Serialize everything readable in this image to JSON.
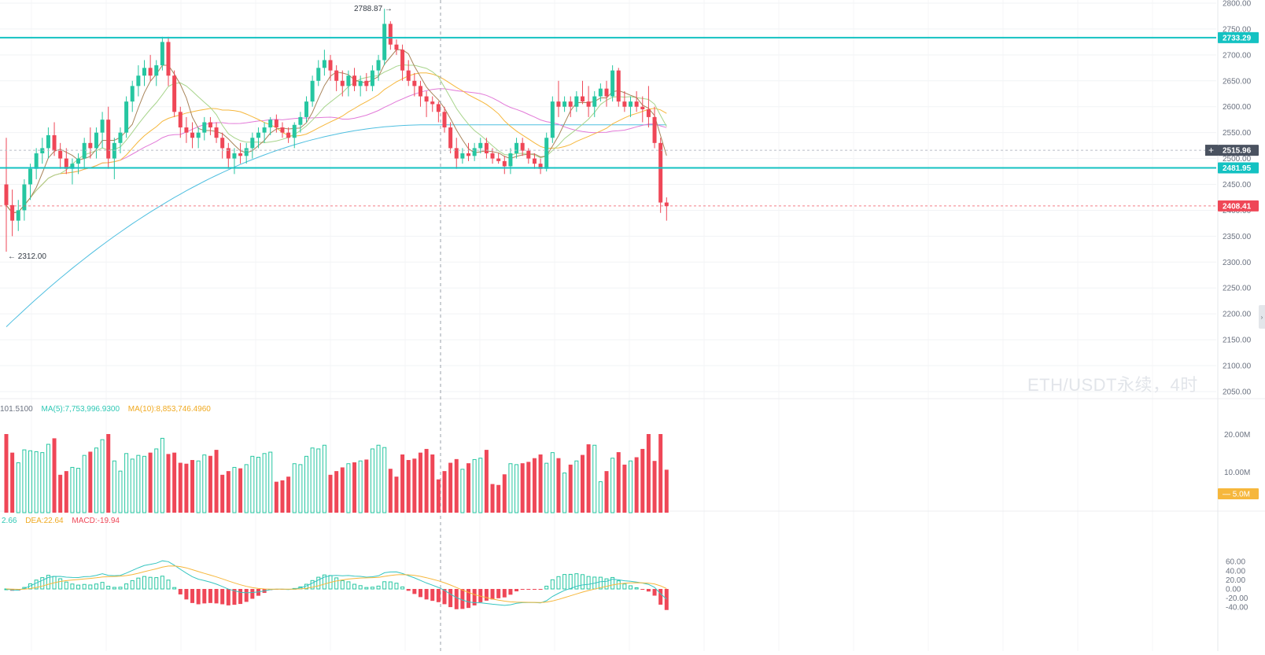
{
  "colors": {
    "up": "#26c6a1",
    "down": "#ef4757",
    "ma5": "#a8845a",
    "ma10": "#a7d48b",
    "ma30": "#f6b73c",
    "ma60": "#e27ad8",
    "ma120": "#4fbfe0",
    "level": "#14c2c2",
    "volMa5": "#2fc8b5",
    "volMa10": "#f6b73c",
    "dif": "#36c5c0",
    "dea": "#f6b73c"
  },
  "price_axis": {
    "ticks": [
      "2800.00",
      "2750.00",
      "2700.00",
      "2650.00",
      "2600.00",
      "2550.00",
      "2500.00",
      "2450.00",
      "2400.00",
      "2350.00",
      "2300.00",
      "2250.00",
      "2200.00",
      "2150.00",
      "2100.00",
      "2050.00"
    ]
  },
  "price_labels": {
    "resistance": "2733.29",
    "crosshair": "2515.96",
    "support": "2481.95",
    "last": "2408.41"
  },
  "annotations": {
    "high": "2788.87",
    "low": "2312.00"
  },
  "volume_legend": {
    "vol": "101.5100",
    "ma5": "MA(5):7,753,996.9300",
    "ma10": "MA(10):8,853,746.4960"
  },
  "volume_axis": {
    "ticks": [
      "20.00M",
      "10.00M"
    ],
    "marker": "5.0M"
  },
  "macd_legend": {
    "dif": "2.66",
    "dea": "DEA:22.64",
    "macd": "MACD:-19.94"
  },
  "macd_axis": {
    "ticks": [
      "60.00",
      "40.00",
      "20.00",
      "0.00",
      "-20.00",
      "-40.00"
    ]
  },
  "watermark": "ETH/USDT永续，4时",
  "chart_data": {
    "type": "candlestick",
    "title": "ETH/USDT永续，4时",
    "ylim": [
      2040,
      2800
    ],
    "levels": [
      2733.29,
      2481.95
    ],
    "crosshair_price": 2515.96,
    "last_price": 2408.41,
    "candles": [
      [
        2450,
        2540,
        2320,
        2410
      ],
      [
        2410,
        2440,
        2350,
        2380
      ],
      [
        2380,
        2420,
        2360,
        2400
      ],
      [
        2400,
        2460,
        2380,
        2450
      ],
      [
        2450,
        2490,
        2420,
        2480
      ],
      [
        2480,
        2520,
        2460,
        2510
      ],
      [
        2510,
        2540,
        2490,
        2520
      ],
      [
        2520,
        2560,
        2500,
        2545
      ],
      [
        2545,
        2570,
        2505,
        2515
      ],
      [
        2515,
        2530,
        2480,
        2500
      ],
      [
        2500,
        2520,
        2470,
        2480
      ],
      [
        2480,
        2500,
        2450,
        2490
      ],
      [
        2490,
        2510,
        2470,
        2500
      ],
      [
        2500,
        2540,
        2480,
        2530
      ],
      [
        2530,
        2560,
        2500,
        2520
      ],
      [
        2520,
        2560,
        2500,
        2550
      ],
      [
        2550,
        2590,
        2520,
        2575
      ],
      [
        2575,
        2600,
        2480,
        2500
      ],
      [
        2500,
        2540,
        2460,
        2530
      ],
      [
        2530,
        2560,
        2510,
        2550
      ],
      [
        2550,
        2620,
        2540,
        2610
      ],
      [
        2610,
        2650,
        2590,
        2640
      ],
      [
        2640,
        2680,
        2620,
        2660
      ],
      [
        2660,
        2690,
        2640,
        2675
      ],
      [
        2675,
        2700,
        2650,
        2660
      ],
      [
        2660,
        2690,
        2640,
        2680
      ],
      [
        2680,
        2735,
        2670,
        2725
      ],
      [
        2725,
        2735,
        2640,
        2660
      ],
      [
        2660,
        2670,
        2580,
        2590
      ],
      [
        2590,
        2600,
        2540,
        2560
      ],
      [
        2560,
        2580,
        2530,
        2550
      ],
      [
        2550,
        2570,
        2520,
        2540
      ],
      [
        2540,
        2560,
        2520,
        2550
      ],
      [
        2550,
        2580,
        2535,
        2570
      ],
      [
        2570,
        2580,
        2545,
        2560
      ],
      [
        2560,
        2570,
        2530,
        2540
      ],
      [
        2540,
        2550,
        2500,
        2520
      ],
      [
        2520,
        2530,
        2480,
        2500
      ],
      [
        2500,
        2520,
        2470,
        2510
      ],
      [
        2510,
        2530,
        2490,
        2505
      ],
      [
        2505,
        2530,
        2490,
        2520
      ],
      [
        2520,
        2550,
        2500,
        2540
      ],
      [
        2540,
        2560,
        2520,
        2550
      ],
      [
        2550,
        2570,
        2530,
        2560
      ],
      [
        2560,
        2580,
        2545,
        2575
      ],
      [
        2575,
        2585,
        2550,
        2560
      ],
      [
        2560,
        2570,
        2540,
        2550
      ],
      [
        2550,
        2560,
        2530,
        2540
      ],
      [
        2540,
        2570,
        2520,
        2565
      ],
      [
        2565,
        2590,
        2550,
        2580
      ],
      [
        2580,
        2620,
        2570,
        2610
      ],
      [
        2610,
        2660,
        2600,
        2650
      ],
      [
        2650,
        2690,
        2640,
        2675
      ],
      [
        2675,
        2710,
        2660,
        2690
      ],
      [
        2690,
        2700,
        2650,
        2670
      ],
      [
        2670,
        2680,
        2630,
        2650
      ],
      [
        2650,
        2670,
        2620,
        2640
      ],
      [
        2640,
        2670,
        2620,
        2660
      ],
      [
        2660,
        2675,
        2630,
        2640
      ],
      [
        2640,
        2660,
        2620,
        2650
      ],
      [
        2650,
        2665,
        2630,
        2640
      ],
      [
        2640,
        2680,
        2630,
        2670
      ],
      [
        2670,
        2700,
        2650,
        2690
      ],
      [
        2690,
        2789,
        2680,
        2760
      ],
      [
        2760,
        2765,
        2710,
        2720
      ],
      [
        2720,
        2730,
        2700,
        2710
      ],
      [
        2710,
        2720,
        2650,
        2670
      ],
      [
        2670,
        2690,
        2640,
        2650
      ],
      [
        2650,
        2665,
        2620,
        2640
      ],
      [
        2640,
        2650,
        2600,
        2620
      ],
      [
        2620,
        2630,
        2580,
        2610
      ],
      [
        2610,
        2620,
        2590,
        2605
      ],
      [
        2605,
        2610,
        2570,
        2590
      ],
      [
        2590,
        2600,
        2550,
        2560
      ],
      [
        2560,
        2570,
        2510,
        2520
      ],
      [
        2520,
        2540,
        2480,
        2500
      ],
      [
        2500,
        2520,
        2490,
        2510
      ],
      [
        2510,
        2530,
        2495,
        2505
      ],
      [
        2505,
        2530,
        2495,
        2520
      ],
      [
        2520,
        2540,
        2510,
        2530
      ],
      [
        2530,
        2540,
        2500,
        2510
      ],
      [
        2510,
        2520,
        2490,
        2500
      ],
      [
        2500,
        2510,
        2490,
        2495
      ],
      [
        2495,
        2505,
        2470,
        2485
      ],
      [
        2485,
        2520,
        2470,
        2510
      ],
      [
        2510,
        2540,
        2500,
        2530
      ],
      [
        2530,
        2540,
        2505,
        2515
      ],
      [
        2515,
        2520,
        2490,
        2500
      ],
      [
        2500,
        2510,
        2480,
        2490
      ],
      [
        2490,
        2500,
        2470,
        2480
      ],
      [
        2480,
        2550,
        2475,
        2540
      ],
      [
        2540,
        2620,
        2530,
        2610
      ],
      [
        2610,
        2650,
        2580,
        2600
      ],
      [
        2600,
        2620,
        2590,
        2610
      ],
      [
        2610,
        2620,
        2580,
        2600
      ],
      [
        2600,
        2630,
        2590,
        2620
      ],
      [
        2620,
        2650,
        2605,
        2610
      ],
      [
        2610,
        2640,
        2580,
        2600
      ],
      [
        2600,
        2630,
        2580,
        2620
      ],
      [
        2620,
        2645,
        2610,
        2635
      ],
      [
        2635,
        2650,
        2600,
        2620
      ],
      [
        2620,
        2680,
        2610,
        2670
      ],
      [
        2670,
        2675,
        2600,
        2610
      ],
      [
        2610,
        2630,
        2590,
        2600
      ],
      [
        2600,
        2620,
        2580,
        2610
      ],
      [
        2610,
        2630,
        2590,
        2600
      ],
      [
        2600,
        2620,
        2570,
        2595
      ],
      [
        2595,
        2640,
        2560,
        2580
      ],
      [
        2580,
        2600,
        2520,
        2530
      ],
      [
        2530,
        2540,
        2395,
        2415
      ],
      [
        2415,
        2425,
        2380,
        2408
      ]
    ]
  }
}
